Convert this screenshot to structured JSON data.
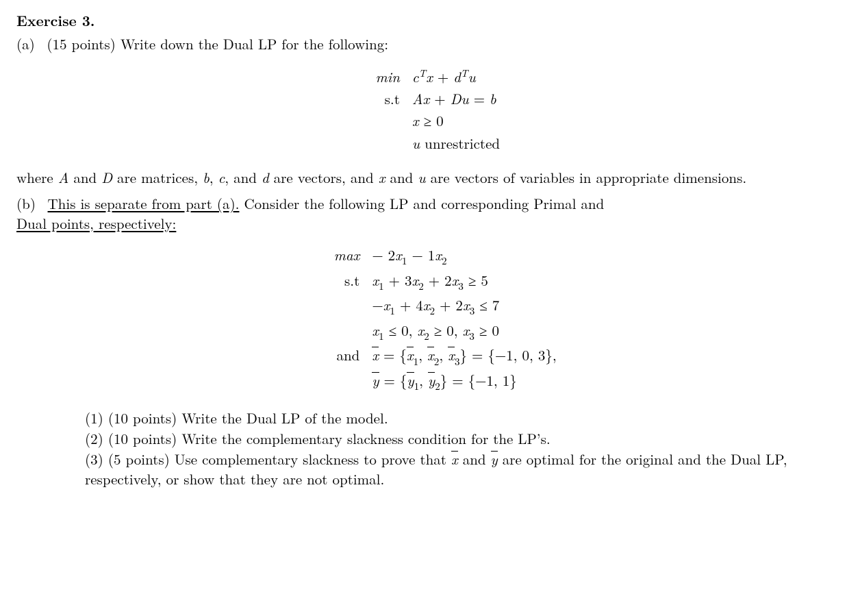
{
  "title": "Exercise 3.",
  "partA": {
    "label": "(a)",
    "points": "(15 points)",
    "prompt": "Write down the Dual LP for the following:",
    "lp": {
      "op": "min",
      "objective_html": "c<sup>T</sup>x + d<sup>T</sup>u",
      "st_label": "s.t",
      "c1_html": "Ax + Du = b",
      "c2_html": "x ≥ 0",
      "c3_html": "u unrestricted"
    },
    "note": "where A and D are matrices, b, c, and d are vectors, and x and u are vectors of variables in appropriate dimensions."
  },
  "partB": {
    "label": "(b)",
    "underlined": "This is separate from part (a).",
    "rest": " Consider the following LP and corresponding Primal and ",
    "underlined2": "Dual points, respectively:",
    "lp": {
      "op": "max",
      "objective_html": "− 2x₁ − 1x₂",
      "st_label": "s.t",
      "c1_html": "x₁ + 3x₂ + 2x₃ ≥ 5",
      "c2_html": "−x₁ + 4x₂ + 2x₃ ≤ 7",
      "c3_html": "x₁ ≤ 0, x₂ ≥ 0, x₃ ≥ 0",
      "and_label": "and",
      "xbar_html": "x̄ = {x̄₁, x̄₂, x̄₃} = {−1, 0, 3},",
      "ybar_html": "ȳ = {ȳ₁, ȳ₂} = {−1, 1}"
    },
    "subparts": {
      "q1": "(1) (10 points) Write the Dual LP of the model.",
      "q2": "(2) (10 points) Write the complementary slackness condition for the LP’s.",
      "q3a": "(3) (5 points) Use complementary slackness to prove that ",
      "q3b": " and ",
      "q3c": " are optimal for the original and the Dual LP, respectively, or show that they are not optimal."
    }
  }
}
